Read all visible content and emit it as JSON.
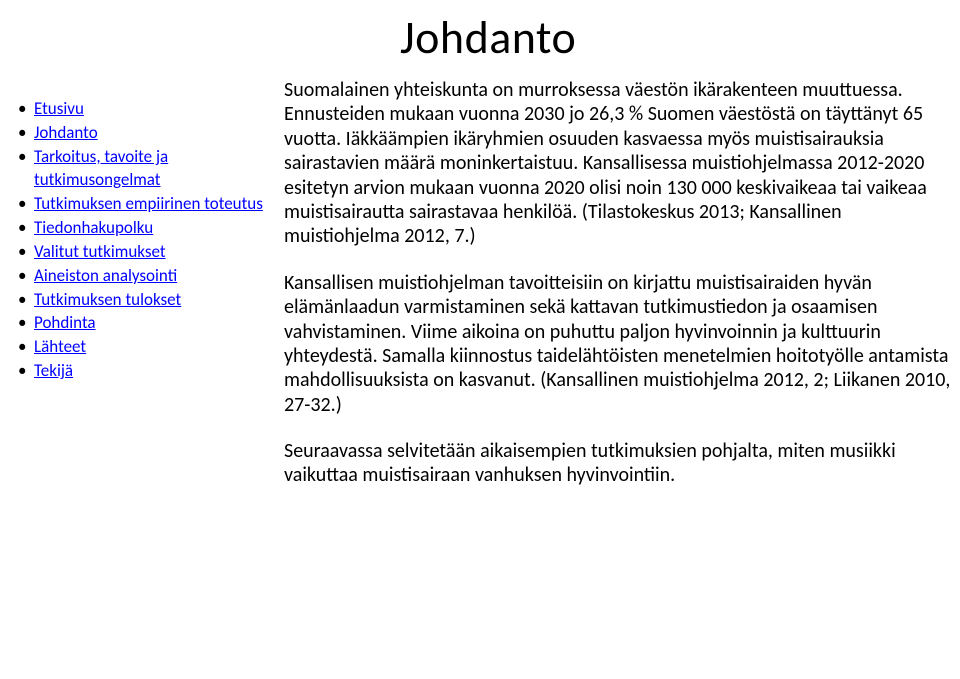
{
  "title": "Johdanto",
  "nav": {
    "items": [
      "Etusivu",
      "Johdanto",
      "Tarkoitus, tavoite ja tutkimusongelmat",
      "Tutkimuksen empiirinen toteutus",
      "Tiedonhakupolku",
      "Valitut tutkimukset",
      "Aineiston analysointi",
      "Tutkimuksen tulokset",
      "Pohdinta",
      "Lähteet",
      "Tekijä"
    ]
  },
  "body": {
    "p1": "Suomalainen yhteiskunta on murroksessa väestön ikärakenteen muuttuessa. Ennusteiden mukaan vuonna 2030 jo 26,3 % Suomen väestöstä on täyttänyt 65 vuotta. Iäkkäämpien ikäryhmien osuuden kasvaessa myös muistisairauksia sairastavien määrä moninkertaistuu. Kansallisessa muistiohjelmassa 2012-2020 esitetyn arvion mukaan vuonna 2020 olisi noin 130 000 keskivaikeaa tai vaikeaa muistisairautta sairastavaa henkilöä. (Tilastokeskus 2013; Kansallinen muistiohjelma 2012, 7.)",
    "p2": "Kansallisen muistiohjelman tavoitteisiin on kirjattu muistisairaiden hyvän elämänlaadun varmistaminen sekä kattavan tutkimustiedon ja osaamisen vahvistaminen. Viime aikoina on puhuttu paljon hyvinvoinnin ja kulttuurin yhteydestä. Samalla kiinnostus taidelähtöisten menetelmien hoitotyölle antamista mahdollisuuksista on kasvanut. (Kansallinen muistiohjelma 2012, 2; Liikanen 2010, 27-32.)",
    "p3": "Seuraavassa selvitetään aikaisempien tutkimuksien pohjalta, miten musiikki vaikuttaa muistisairaan vanhuksen hyvinvointiin."
  }
}
